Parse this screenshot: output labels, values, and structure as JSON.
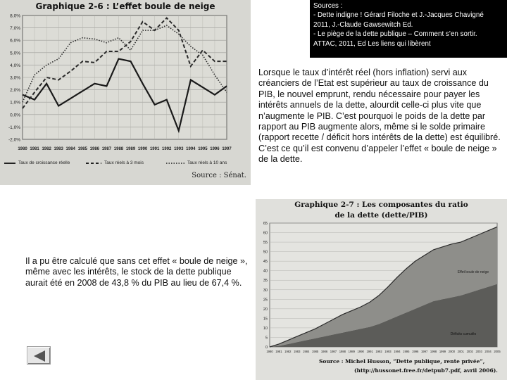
{
  "sources": {
    "lines": [
      "Sources :",
      "- Dette indigne ! Gérard Filoche et J.-Jacques Chavigné",
      "2011, J.-Claude Gawsewitch Ed.",
      "- Le piège de la dette publique – Comment s’en sortir.",
      "ATTAC, 2011, Ed Les liens qui libèrent"
    ]
  },
  "paragraph1": "Lorsque le taux d’intérêt réel (hors inflation) servi aux créanciers de l’Etat est supérieur au taux de croissance du PIB, le nouvel emprunt, rendu nécessaire pour payer les intérêts annuels de la dette, alourdit celle-ci plus vite que n’augmente le PIB. C’est pourquoi le poids de la dette par rapport au PIB augmente alors, même si le solde primaire (rapport recette / déficit hors intérêts de la dette) est équilibré. C’est ce qu’il est convenu d’appeler l’effet « boule de neige » de la dette.",
  "paragraph2": "Il a pu être calculé que sans cet effet « boule de neige », même avec les intérêts, le stock de la dette publique aurait été en 2008 de 43,8 % du PIB au lieu de 67,4 %.",
  "chart_data": [
    {
      "type": "line",
      "title": "Graphique 2-6 : L’effet boule de neige",
      "source": "Source : Sénat.",
      "x": [
        "1980",
        "1981",
        "1982",
        "1983",
        "1984",
        "1985",
        "1986",
        "1987",
        "1988",
        "1989",
        "1990",
        "1991",
        "1992",
        "1993",
        "1994",
        "1995",
        "1996",
        "1997"
      ],
      "ytick_labels": [
        "8,0%",
        "7,0%",
        "6,0%",
        "5,0%",
        "4,0%",
        "3,0%",
        "2,0%",
        "1,0%",
        "0,0%",
        "-1,0%",
        "-2,0%"
      ],
      "ylim": [
        -2,
        8
      ],
      "series": [
        {
          "name": "Taux de croissance réelle",
          "style": "solid",
          "values": [
            1.6,
            1.2,
            2.5,
            0.7,
            1.3,
            1.9,
            2.5,
            2.3,
            4.5,
            4.3,
            2.5,
            0.8,
            1.2,
            -1.3,
            2.8,
            2.2,
            1.6,
            2.3
          ]
        },
        {
          "name": "Taux réels à 3 mois",
          "style": "dashed",
          "values": [
            0.5,
            1.8,
            3.0,
            2.8,
            3.5,
            4.3,
            4.2,
            5.1,
            5.1,
            5.9,
            7.5,
            6.8,
            7.8,
            6.8,
            3.9,
            5.2,
            4.3,
            4.3
          ]
        },
        {
          "name": "Taux réels à 10 ans",
          "style": "dotted",
          "values": [
            1.0,
            3.2,
            4.0,
            4.5,
            5.8,
            6.2,
            6.1,
            5.8,
            6.2,
            5.2,
            6.8,
            6.8,
            7.2,
            6.5,
            5.5,
            4.8,
            3.2,
            1.8
          ]
        }
      ]
    },
    {
      "type": "area",
      "title_line1": "Graphique 2-7 : Les composantes du ratio",
      "title_line2": "de la dette (dette/PIB)",
      "source_line1": "Source : Michel Husson, “Dette publique, rente privée”,",
      "source_line2": "(http://hussonet.free.fr/detpub7.pdf, avril 2006).",
      "x": [
        "1980",
        "1981",
        "1982",
        "1983",
        "1984",
        "1985",
        "1986",
        "1987",
        "1988",
        "1989",
        "1990",
        "1991",
        "1992",
        "1993",
        "1994",
        "1995",
        "1996",
        "1997",
        "1998",
        "1999",
        "2000",
        "2001",
        "2002",
        "2003",
        "2004",
        "2005"
      ],
      "ytick_labels": [
        "0",
        "5",
        "10",
        "15",
        "20",
        "25",
        "30",
        "35",
        "40",
        "45",
        "50",
        "55",
        "60",
        "65"
      ],
      "ylim": [
        0,
        65
      ],
      "series": [
        {
          "name": "Déficits cumulés",
          "values": [
            0,
            0.5,
            1.5,
            2.5,
            3.5,
            4.5,
            5.5,
            6.5,
            7.5,
            8.5,
            9.5,
            10.5,
            12,
            14,
            16,
            18,
            20,
            22,
            24,
            25,
            26,
            27,
            28.5,
            30,
            31.5,
            33
          ]
        },
        {
          "name": "Effet boule de neige",
          "values": [
            0,
            1,
            2,
            3,
            4,
            5,
            6.5,
            8,
            9.5,
            10.5,
            11.5,
            13,
            15,
            17.5,
            20.5,
            23,
            25,
            26,
            27,
            27.5,
            28,
            28,
            28.5,
            29,
            29.5,
            30
          ]
        }
      ]
    }
  ]
}
